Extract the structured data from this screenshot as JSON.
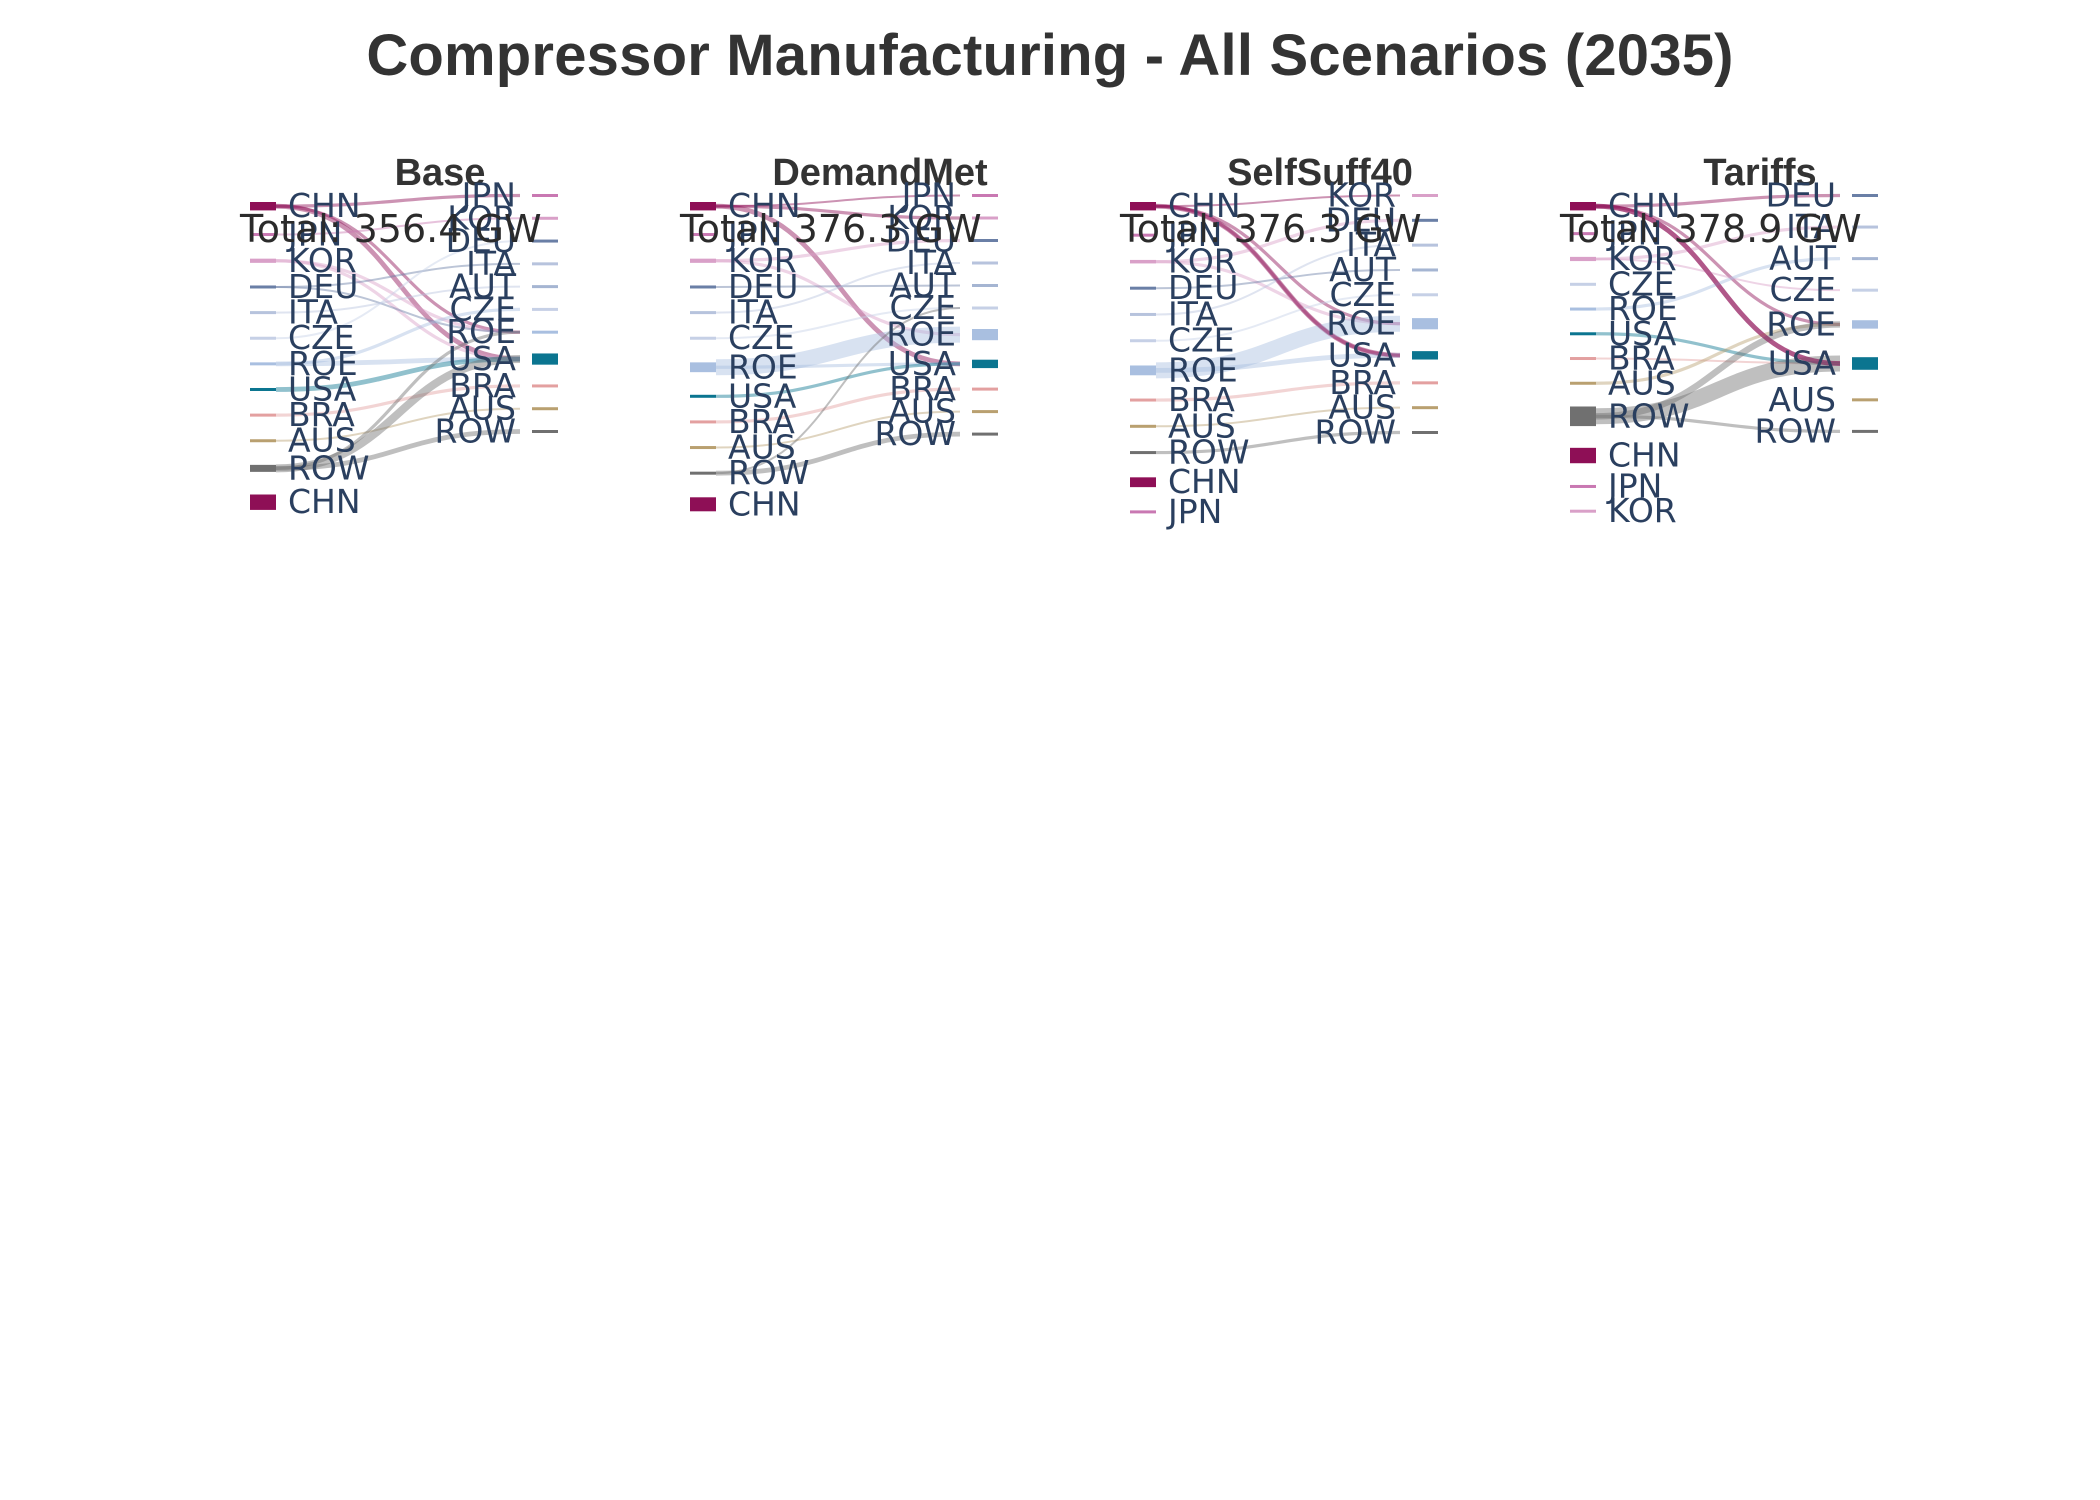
{
  "title": "Compressor Manufacturing - All Scenarios (2035)",
  "colors": {
    "CHN": "#8e0f56",
    "JPN": "#c978b2",
    "KOR": "#d9a0c8",
    "DEU": "#6a7fa6",
    "ITA": "#b7c3dd",
    "CZE": "#c6d0e6",
    "AUT": "#a5b5d2",
    "ROE": "#a9bfe0",
    "USA": "#0b7590",
    "BRA": "#e3a0a0",
    "AUS": "#b9a070",
    "ROW": "#707070"
  },
  "chart_data": [
    {
      "type": "sankey",
      "scenario": "Base",
      "total_label": "Total: 356.4 GW",
      "total": 356.4,
      "units": "GW",
      "sources": [
        {
          "id": "CHN",
          "label": "CHN",
          "value": 12
        },
        {
          "id": "JPN",
          "label": "JPN",
          "value": 3
        },
        {
          "id": "KOR",
          "label": "KOR",
          "value": 6
        },
        {
          "id": "DEU",
          "label": "DEU",
          "value": 3
        },
        {
          "id": "ITA",
          "label": "ITA",
          "value": 2
        },
        {
          "id": "CZE",
          "label": "CZE",
          "value": 2
        },
        {
          "id": "ROE",
          "label": "ROE",
          "value": 4
        },
        {
          "id": "USA",
          "label": "USA",
          "value": 4
        },
        {
          "id": "BRA",
          "label": "BRA",
          "value": 3
        },
        {
          "id": "AUS",
          "label": "AUS",
          "value": 2
        },
        {
          "id": "ROW",
          "label": "ROW",
          "value": 10
        },
        {
          "id": "CHN",
          "label": "CHN",
          "value": 22
        }
      ],
      "targets": [
        {
          "id": "JPN",
          "label": "JPN",
          "value": 4
        },
        {
          "id": "KOR",
          "label": "KOR",
          "value": 4
        },
        {
          "id": "DEU",
          "label": "DEU",
          "value": 3
        },
        {
          "id": "ITA",
          "label": "ITA",
          "value": 2
        },
        {
          "id": "AUT",
          "label": "AUT",
          "value": 2
        },
        {
          "id": "CZE",
          "label": "CZE",
          "value": 2
        },
        {
          "id": "ROE",
          "label": "ROE",
          "value": 4
        },
        {
          "id": "USA",
          "label": "USA",
          "value": 16
        },
        {
          "id": "BRA",
          "label": "BRA",
          "value": 3
        },
        {
          "id": "AUS",
          "label": "AUS",
          "value": 2
        },
        {
          "id": "ROW",
          "label": "ROW",
          "value": 4
        }
      ],
      "links": [
        [
          "CHN",
          "JPN",
          2
        ],
        [
          "CHN",
          "USA",
          3
        ],
        [
          "CHN",
          "ROE",
          2
        ],
        [
          "JPN",
          "KOR",
          1
        ],
        [
          "KOR",
          "USA",
          2
        ],
        [
          "KOR",
          "ROE",
          2
        ],
        [
          "DEU",
          "ITA",
          1
        ],
        [
          "DEU",
          "ROE",
          1
        ],
        [
          "ITA",
          "AUT",
          1
        ],
        [
          "CZE",
          "DEU",
          1
        ],
        [
          "ROE",
          "USA",
          3
        ],
        [
          "ROE",
          "CZE",
          2
        ],
        [
          "USA",
          "USA",
          3
        ],
        [
          "BRA",
          "BRA",
          2
        ],
        [
          "AUS",
          "AUS",
          1
        ],
        [
          "ROW",
          "USA",
          5
        ],
        [
          "ROW",
          "ROW",
          3
        ],
        [
          "ROW",
          "ROE",
          2
        ]
      ]
    },
    {
      "type": "sankey",
      "scenario": "DemandMet",
      "total_label": "Total: 376.3 GW",
      "total": 376.3,
      "units": "GW",
      "sources": [
        {
          "id": "CHN",
          "label": "CHN",
          "value": 12
        },
        {
          "id": "JPN",
          "label": "JPN",
          "value": 2
        },
        {
          "id": "KOR",
          "label": "KOR",
          "value": 6
        },
        {
          "id": "DEU",
          "label": "DEU",
          "value": 3
        },
        {
          "id": "ITA",
          "label": "ITA",
          "value": 2
        },
        {
          "id": "CZE",
          "label": "CZE",
          "value": 2
        },
        {
          "id": "ROE",
          "label": "ROE",
          "value": 14
        },
        {
          "id": "USA",
          "label": "USA",
          "value": 3
        },
        {
          "id": "BRA",
          "label": "BRA",
          "value": 3
        },
        {
          "id": "AUS",
          "label": "AUS",
          "value": 2
        },
        {
          "id": "ROW",
          "label": "ROW",
          "value": 4
        },
        {
          "id": "CHN",
          "label": "CHN",
          "value": 20
        }
      ],
      "targets": [
        {
          "id": "JPN",
          "label": "JPN",
          "value": 2
        },
        {
          "id": "KOR",
          "label": "KOR",
          "value": 3
        },
        {
          "id": "DEU",
          "label": "DEU",
          "value": 3
        },
        {
          "id": "ITA",
          "label": "ITA",
          "value": 2
        },
        {
          "id": "AUT",
          "label": "AUT",
          "value": 2
        },
        {
          "id": "CZE",
          "label": "CZE",
          "value": 2
        },
        {
          "id": "ROE",
          "label": "ROE",
          "value": 16
        },
        {
          "id": "USA",
          "label": "USA",
          "value": 12
        },
        {
          "id": "BRA",
          "label": "BRA",
          "value": 3
        },
        {
          "id": "AUS",
          "label": "AUS",
          "value": 2
        },
        {
          "id": "ROW",
          "label": "ROW",
          "value": 3
        }
      ],
      "links": [
        [
          "CHN",
          "USA",
          3
        ],
        [
          "CHN",
          "JPN",
          1
        ],
        [
          "CHN",
          "KOR",
          2
        ],
        [
          "KOR",
          "DEU",
          2
        ],
        [
          "KOR",
          "ROE",
          2
        ],
        [
          "DEU",
          "AUT",
          1
        ],
        [
          "ITA",
          "ITA",
          1
        ],
        [
          "CZE",
          "CZE",
          1
        ],
        [
          "ROE",
          "ROE",
          10
        ],
        [
          "ROE",
          "USA",
          2
        ],
        [
          "USA",
          "USA",
          2
        ],
        [
          "BRA",
          "BRA",
          2
        ],
        [
          "AUS",
          "AUS",
          1
        ],
        [
          "ROW",
          "ROW",
          3
        ],
        [
          "ROW",
          "CZE",
          1
        ]
      ]
    },
    {
      "type": "sankey",
      "scenario": "SelfSuff40",
      "total_label": "Total: 376.3 GW",
      "total": 376.3,
      "units": "GW",
      "sources": [
        {
          "id": "CHN",
          "label": "CHN",
          "value": 12
        },
        {
          "id": "JPN",
          "label": "JPN",
          "value": 2
        },
        {
          "id": "KOR",
          "label": "KOR",
          "value": 5
        },
        {
          "id": "DEU",
          "label": "DEU",
          "value": 3
        },
        {
          "id": "ITA",
          "label": "ITA",
          "value": 2
        },
        {
          "id": "CZE",
          "label": "CZE",
          "value": 2
        },
        {
          "id": "ROE",
          "label": "ROE",
          "value": 14
        },
        {
          "id": "BRA",
          "label": "BRA",
          "value": 3
        },
        {
          "id": "AUS",
          "label": "AUS",
          "value": 2
        },
        {
          "id": "ROW",
          "label": "ROW",
          "value": 3
        },
        {
          "id": "CHN",
          "label": "CHN",
          "value": 14
        },
        {
          "id": "JPN",
          "label": "JPN",
          "value": 1
        }
      ],
      "targets": [
        {
          "id": "KOR",
          "label": "KOR",
          "value": 3
        },
        {
          "id": "DEU",
          "label": "DEU",
          "value": 3
        },
        {
          "id": "ITA",
          "label": "ITA",
          "value": 2
        },
        {
          "id": "AUT",
          "label": "AUT",
          "value": 2
        },
        {
          "id": "CZE",
          "label": "CZE",
          "value": 2
        },
        {
          "id": "ROE",
          "label": "ROE",
          "value": 16
        },
        {
          "id": "USA",
          "label": "USA",
          "value": 12
        },
        {
          "id": "BRA",
          "label": "BRA",
          "value": 3
        },
        {
          "id": "AUS",
          "label": "AUS",
          "value": 2
        },
        {
          "id": "ROW",
          "label": "ROW",
          "value": 3
        }
      ],
      "links": [
        [
          "CHN",
          "USA",
          3
        ],
        [
          "CHN",
          "ROE",
          2
        ],
        [
          "CHN",
          "KOR",
          1
        ],
        [
          "KOR",
          "DEU",
          2
        ],
        [
          "KOR",
          "ROE",
          2
        ],
        [
          "DEU",
          "AUT",
          1
        ],
        [
          "ITA",
          "ITA",
          1
        ],
        [
          "CZE",
          "CZE",
          1
        ],
        [
          "ROE",
          "ROE",
          10
        ],
        [
          "ROE",
          "USA",
          3
        ],
        [
          "BRA",
          "BRA",
          2
        ],
        [
          "AUS",
          "AUS",
          1
        ],
        [
          "ROW",
          "ROW",
          2
        ],
        [
          "CHN",
          "USA",
          2
        ]
      ]
    },
    {
      "type": "sankey",
      "scenario": "Tariffs",
      "total_label": "Total: 378.9 GW",
      "total": 378.9,
      "units": "GW",
      "sources": [
        {
          "id": "CHN",
          "label": "CHN",
          "value": 12
        },
        {
          "id": "JPN",
          "label": "JPN",
          "value": 2
        },
        {
          "id": "KOR",
          "label": "KOR",
          "value": 6
        },
        {
          "id": "CZE",
          "label": "CZE",
          "value": 2
        },
        {
          "id": "ROE",
          "label": "ROE",
          "value": 3
        },
        {
          "id": "USA",
          "label": "USA",
          "value": 3
        },
        {
          "id": "BRA",
          "label": "BRA",
          "value": 2
        },
        {
          "id": "AUS",
          "label": "AUS",
          "value": 3
        },
        {
          "id": "ROW",
          "label": "ROW",
          "value": 28
        },
        {
          "id": "CHN",
          "label": "CHN",
          "value": 22
        },
        {
          "id": "JPN",
          "label": "JPN",
          "value": 2
        },
        {
          "id": "KOR",
          "label": "KOR",
          "value": 2
        }
      ],
      "targets": [
        {
          "id": "DEU",
          "label": "DEU",
          "value": 3
        },
        {
          "id": "ITA",
          "label": "ITA",
          "value": 2
        },
        {
          "id": "AUT",
          "label": "AUT",
          "value": 2
        },
        {
          "id": "CZE",
          "label": "CZE",
          "value": 2
        },
        {
          "id": "ROE",
          "label": "ROE",
          "value": 12
        },
        {
          "id": "USA",
          "label": "USA",
          "value": 18
        },
        {
          "id": "AUS",
          "label": "AUS",
          "value": 2
        },
        {
          "id": "ROW",
          "label": "ROW",
          "value": 2
        }
      ],
      "links": [
        [
          "CHN",
          "USA",
          3
        ],
        [
          "CHN",
          "DEU",
          2
        ],
        [
          "CHN",
          "ROE",
          2
        ],
        [
          "KOR",
          "ITA",
          2
        ],
        [
          "KOR",
          "CZE",
          1
        ],
        [
          "ROE",
          "AUT",
          2
        ],
        [
          "USA",
          "USA",
          2
        ],
        [
          "BRA",
          "USA",
          1
        ],
        [
          "AUS",
          "ROE",
          2
        ],
        [
          "ROW",
          "USA",
          10
        ],
        [
          "ROW",
          "ROE",
          4
        ],
        [
          "ROW",
          "ROW",
          2
        ],
        [
          "CHN",
          "USA",
          3
        ]
      ]
    }
  ]
}
